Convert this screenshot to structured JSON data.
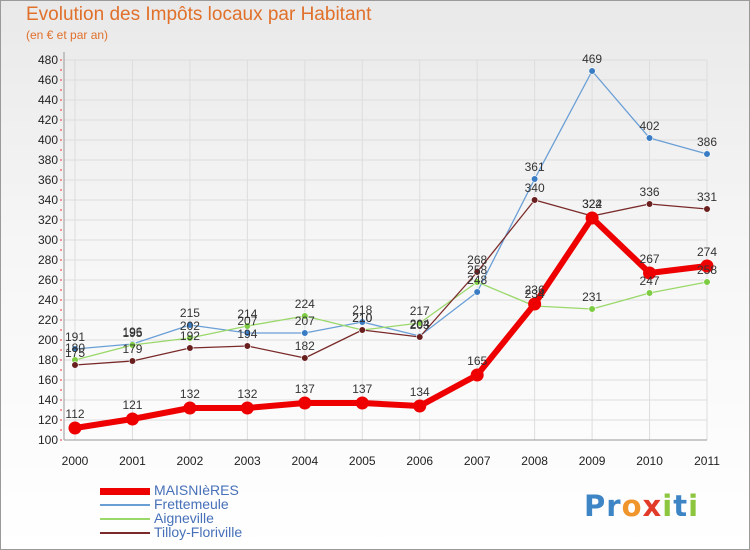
{
  "title": "Evolution des Impôts locaux par Habitant",
  "subtitle": "(en € et par an)",
  "logo": {
    "text": "Proxiti",
    "letter_colors": [
      "#3e85c6",
      "#3e85c6",
      "#f0952c",
      "#e23b2a",
      "#8cc63e",
      "#3e85c6",
      "#8cc63e"
    ]
  },
  "chart_data": {
    "type": "line",
    "title": "Evolution des Impôts locaux par Habitant",
    "subtitle": "(en € et par an)",
    "xlabel": "",
    "ylabel": "",
    "x": [
      2000,
      2001,
      2002,
      2003,
      2004,
      2005,
      2006,
      2007,
      2008,
      2009,
      2010,
      2011
    ],
    "ylim": [
      100,
      480
    ],
    "yticks": [
      100,
      120,
      140,
      160,
      180,
      200,
      220,
      240,
      260,
      280,
      300,
      320,
      340,
      360,
      380,
      400,
      420,
      440,
      460,
      480
    ],
    "grid": true,
    "legend_position": "bottom-left",
    "series": [
      {
        "name": "Frettemeule",
        "color": "#6a9fd6",
        "marker": "#3a7cc4",
        "values": [
          191,
          196,
          215,
          207,
          207,
          218,
          204,
          248,
          361,
          469,
          402,
          386
        ]
      },
      {
        "name": "Aigneville",
        "color": "#9ad86a",
        "marker": "#7dcc44",
        "values": [
          180,
          195,
          202,
          214,
          224,
          210,
          217,
          258,
          234,
          231,
          247,
          258
        ]
      },
      {
        "name": "Tilloy-Floriville",
        "color": "#7a2a2a",
        "marker": "#6a1f1f",
        "values": [
          175,
          179,
          192,
          194,
          182,
          210,
          203,
          268,
          340,
          324,
          336,
          331
        ]
      },
      {
        "name": "MAISNIèRES",
        "color": "#ee0000",
        "marker": "#ee0000",
        "values": [
          112,
          121,
          132,
          132,
          137,
          137,
          134,
          165,
          236,
          322,
          267,
          274
        ]
      }
    ],
    "legend": [
      "MAISNIèRES",
      "Frettemeule",
      "Aigneville",
      "Tilloy-Floriville"
    ]
  }
}
